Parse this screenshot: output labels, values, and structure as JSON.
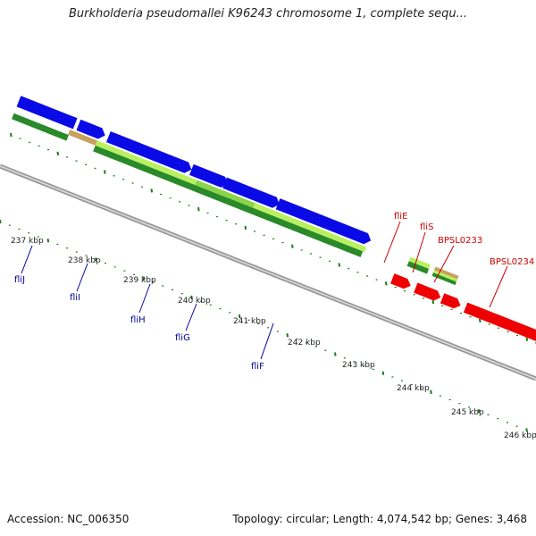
{
  "header": {
    "title": "Burkholderia pseudomallei K96243 chromosome 1, complete sequ..."
  },
  "footer": {
    "accession": "Accession: NC_006350",
    "stats": "Topology: circular; Length: 4,074,542 bp; Genes: 3,468"
  },
  "ticks": [
    "237 kbp",
    "238 kbp",
    "239 kbp",
    "240 kbp",
    "241 kbp",
    "242 kbp",
    "243 kbp",
    "244 kbp",
    "245 kbp",
    "246 kbp"
  ],
  "genes_minus": [
    "fliJ",
    "fliI",
    "fliH",
    "fliG",
    "fliF"
  ],
  "genes_plus": [
    "fliE",
    "fliS",
    "BPSL0233",
    "BPSL0234"
  ],
  "colors": {
    "blue": "#0a0ae6",
    "red": "#ee0000",
    "dark_green": "#2a8a2a",
    "light_green": "#b8f060",
    "backbone": "#888888",
    "minus_label": "#000099",
    "plus_label": "#cc0000",
    "tick": "#1a7a1a"
  }
}
